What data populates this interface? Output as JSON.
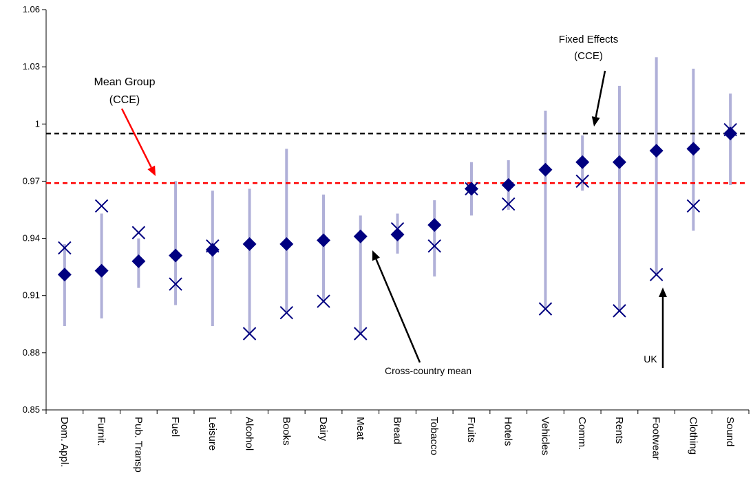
{
  "chart_data": {
    "type": "scatter",
    "categories": [
      "Dom. Appl.",
      "Furnit.",
      "Pub. Transp",
      "Fuel",
      "Leisure",
      "Alcohol",
      "Books",
      "Dairy",
      "Meat",
      "Bread",
      "Tobacco",
      "Fruits",
      "Hotels",
      "Vehicles",
      "Comm.",
      "Rents",
      "Footwear",
      "Clothing",
      "Sound"
    ],
    "ylim": [
      0.85,
      1.06
    ],
    "yticks": [
      0.85,
      0.88,
      0.91,
      0.94,
      0.97,
      1.0,
      1.03,
      1.06
    ],
    "ytick_labels": [
      "0.85",
      "0.88",
      "0.91",
      "0.94",
      "0.97",
      "1",
      "1.03",
      "1.06"
    ],
    "grid": false,
    "legend": "none",
    "series": [
      {
        "marker": "diamond",
        "color": "#000080",
        "values": [
          0.921,
          0.923,
          0.928,
          0.931,
          0.934,
          0.937,
          0.937,
          0.939,
          0.941,
          0.942,
          0.947,
          0.966,
          0.968,
          0.976,
          0.98,
          0.98,
          0.986,
          0.987,
          0.995
        ]
      },
      {
        "marker": "x",
        "color": "#000080",
        "values": [
          0.935,
          0.957,
          0.943,
          0.916,
          0.936,
          0.89,
          0.901,
          0.907,
          0.89,
          0.945,
          0.936,
          0.966,
          0.958,
          0.903,
          0.97,
          0.902,
          0.921,
          0.957,
          0.997
        ]
      },
      {
        "marker": "range",
        "color": "#b0b0d8",
        "lows": [
          0.894,
          0.898,
          0.914,
          0.905,
          0.894,
          0.89,
          0.901,
          0.907,
          0.89,
          0.932,
          0.92,
          0.952,
          0.955,
          0.903,
          0.965,
          0.902,
          0.921,
          0.944,
          0.968
        ],
        "highs": [
          0.937,
          0.953,
          0.94,
          0.97,
          0.965,
          0.966,
          0.987,
          0.963,
          0.952,
          0.953,
          0.96,
          0.98,
          0.981,
          1.007,
          0.994,
          1.02,
          1.035,
          1.029,
          1.016
        ]
      }
    ],
    "reference_lines": [
      {
        "value": 0.995,
        "color": "#000000",
        "style": "dashed"
      },
      {
        "value": 0.969,
        "color": "#ff0000",
        "style": "dashed"
      }
    ],
    "annotations": [
      {
        "lines": [
          "Fixed Effects",
          "(CCE)"
        ],
        "color": "#000000"
      },
      {
        "lines": [
          "Mean Group",
          "(CCE)"
        ],
        "color": "#ff0000"
      },
      {
        "lines": [
          "Cross-country mean"
        ],
        "color": "#000000"
      },
      {
        "lines": [
          "UK"
        ],
        "color": "#000000"
      }
    ]
  }
}
